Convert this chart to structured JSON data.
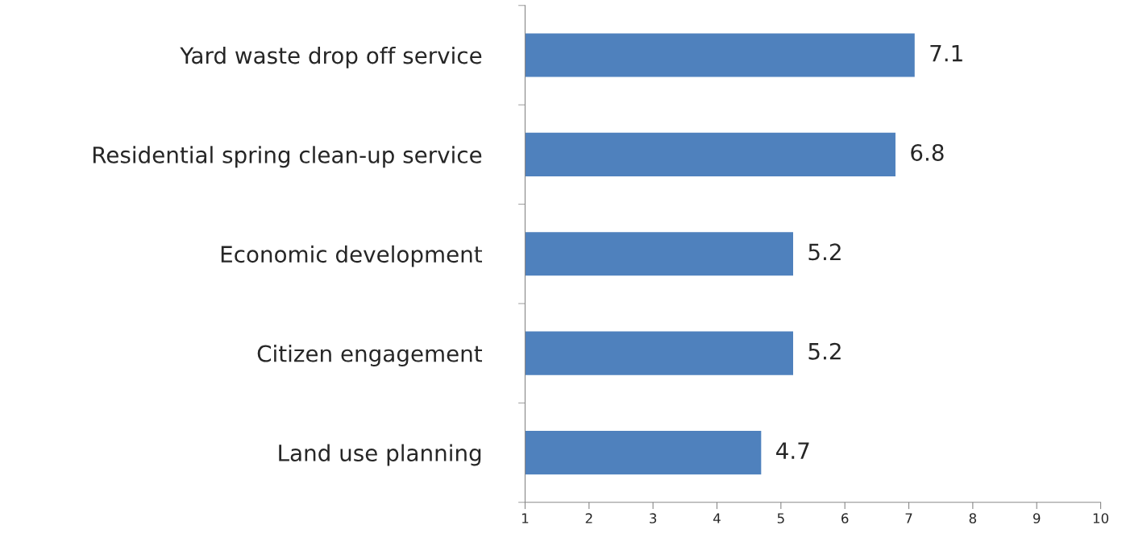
{
  "chart_data": {
    "type": "bar",
    "orientation": "horizontal",
    "categories": [
      "Yard waste drop off service",
      "Residential spring clean-up service",
      "Economic development",
      "Citizen engagement",
      "Land use planning"
    ],
    "values": [
      7.1,
      6.8,
      5.2,
      5.2,
      4.7
    ],
    "color": "#4f81bd",
    "xlim": [
      1,
      10
    ],
    "xticks": [
      1,
      2,
      3,
      4,
      5,
      6,
      7,
      8,
      9,
      10
    ],
    "grid": false,
    "data_labels": true
  }
}
